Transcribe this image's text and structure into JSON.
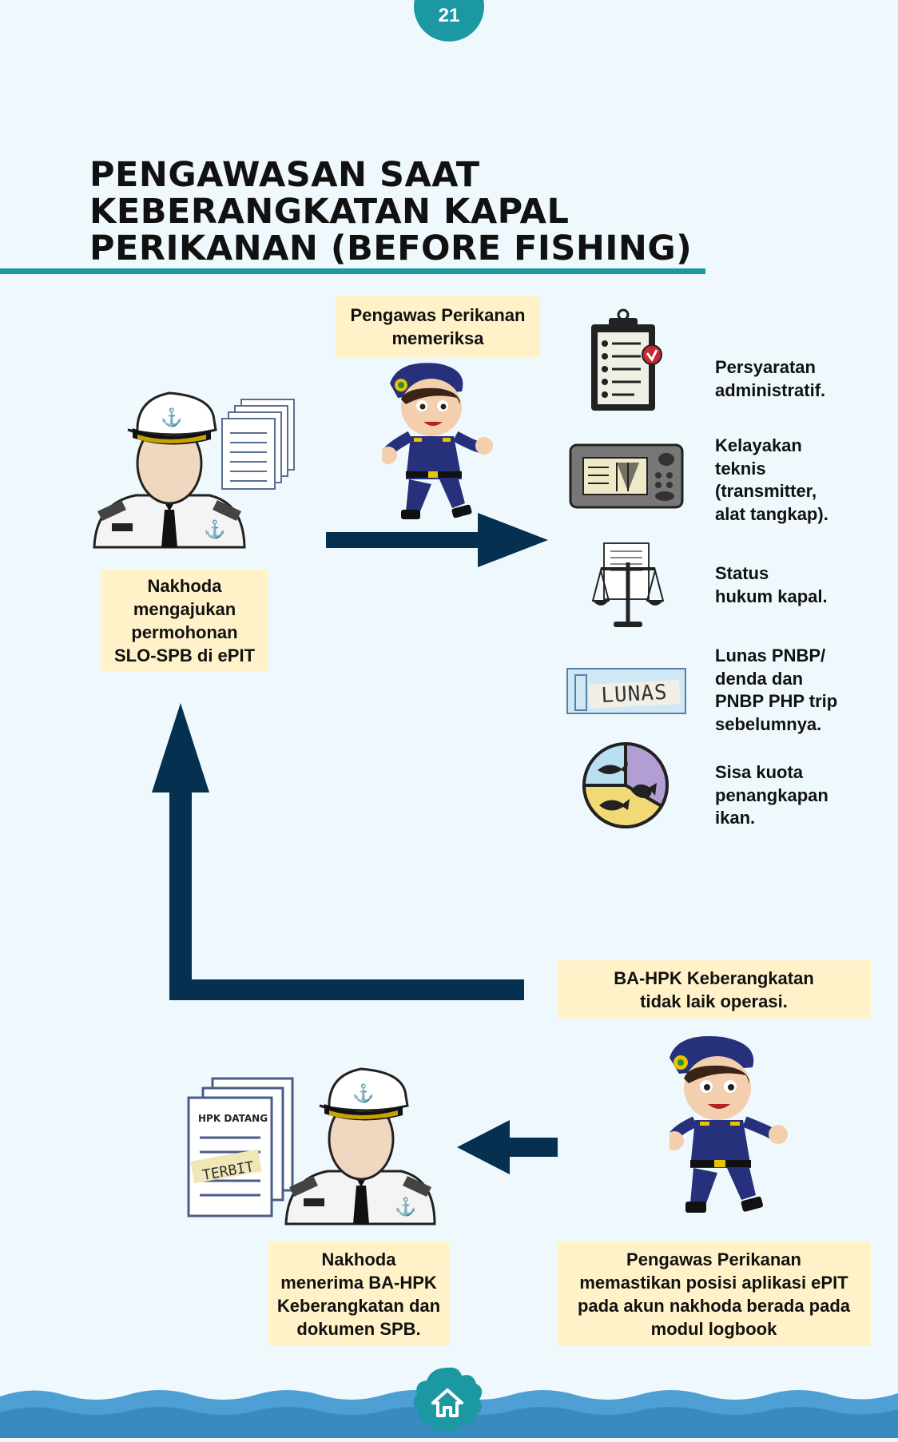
{
  "page_number": "21",
  "title": {
    "lines": [
      "PENGAWASAN SAAT",
      "KEBERANGKATAN KAPAL",
      "PERIKANAN (BEFORE FISHING)"
    ]
  },
  "labels": {
    "inspector_checks": [
      "Pengawas Perikanan",
      "memeriksa"
    ],
    "captain_applies": [
      "Nakhoda",
      "mengajukan",
      "permohonan",
      "SLO-SPB di ePIT"
    ],
    "not_seaworthy": [
      "BA-HPK Keberangkatan",
      "tidak laik operasi."
    ],
    "captain_receives": [
      "Nakhoda",
      "menerima BA-HPK",
      "Keberangkatan dan",
      "dokumen SPB."
    ],
    "inspector_ensures": [
      "Pengawas Perikanan",
      "memastikan posisi aplikasi ePIT",
      "pada akun nakhoda berada pada",
      "modul logbook"
    ]
  },
  "requirements": [
    {
      "icon": "clipboard-check-icon",
      "lines": [
        "Persyaratan",
        "administratif."
      ]
    },
    {
      "icon": "transmitter-device-icon",
      "lines": [
        "Kelayakan",
        "teknis",
        "(transmitter,",
        "alat tangkap)."
      ]
    },
    {
      "icon": "legal-scale-icon",
      "lines": [
        "Status",
        "hukum kapal."
      ]
    },
    {
      "icon": "paid-ticket-icon",
      "lines": [
        "Lunas PNBP/",
        "denda dan",
        "PNBP PHP trip",
        "sebelumnya."
      ]
    },
    {
      "icon": "fish-quota-pie-icon",
      "lines": [
        "Sisa kuota",
        "penangkapan",
        "ikan."
      ]
    }
  ],
  "icon_texts": {
    "lunas": "LUNAS",
    "hpk_datang": "HPK DATANG",
    "terbit": "TERBIT"
  },
  "colors": {
    "teal": "#1c98a3",
    "navy": "#06304f",
    "box_fill": "#fff2c8",
    "background": "#eff9fd",
    "wave": "#4e9fd3"
  }
}
